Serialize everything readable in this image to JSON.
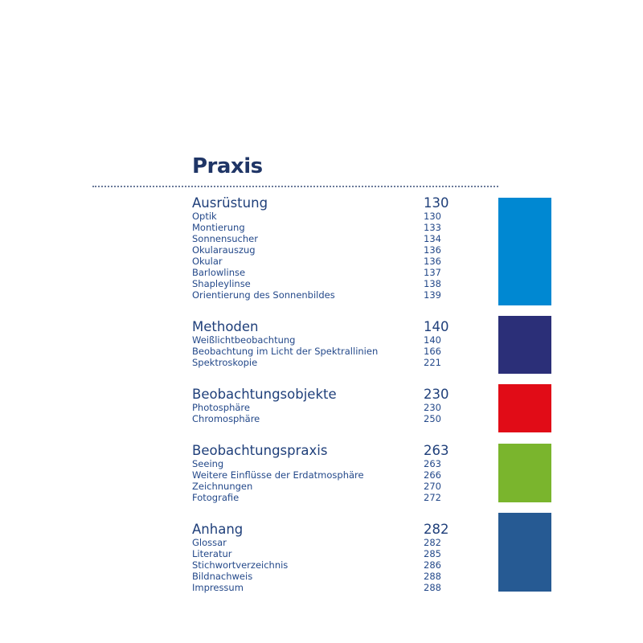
{
  "title": "Praxis",
  "sections": [
    {
      "label": "Ausrüstung",
      "page": "130",
      "color": "#0088d2",
      "items": [
        {
          "label": "Optik",
          "page": "130"
        },
        {
          "label": "Montierung",
          "page": "133"
        },
        {
          "label": "Sonnensucher",
          "page": "134"
        },
        {
          "label": "Okularauszug",
          "page": "136"
        },
        {
          "label": "Okular",
          "page": "136"
        },
        {
          "label": "Barlowlinse",
          "page": "137"
        },
        {
          "label": "Shapleylinse",
          "page": "138"
        },
        {
          "label": "Orientierung des Sonnenbildes",
          "page": "139"
        }
      ]
    },
    {
      "label": "Methoden",
      "page": "140",
      "color": "#2b2f78",
      "items": [
        {
          "label": "Weißlichtbeobachtung",
          "page": "140"
        },
        {
          "label": "Beobachtung im Licht der Spektrallinien",
          "page": "166"
        },
        {
          "label": "Spektroskopie",
          "page": "221"
        }
      ]
    },
    {
      "label": "Beobachtungsobjekte",
      "page": "230",
      "color": "#e10c17",
      "items": [
        {
          "label": "Photosphäre",
          "page": "230"
        },
        {
          "label": "Chromosphäre",
          "page": "250"
        }
      ]
    },
    {
      "label": "Beobachtungspraxis",
      "page": "263",
      "color": "#7ab52d",
      "items": [
        {
          "label": "Seeing",
          "page": "263"
        },
        {
          "label": "Weitere Einflüsse der Erdatmosphäre",
          "page": "266"
        },
        {
          "label": "Zeichnungen",
          "page": "270"
        },
        {
          "label": "Fotografie",
          "page": "272"
        }
      ]
    },
    {
      "label": "Anhang",
      "page": "282",
      "color": "#265a93",
      "items": [
        {
          "label": "Glossar",
          "page": "282"
        },
        {
          "label": "Literatur",
          "page": "285"
        },
        {
          "label": "Stichwortverzeichnis",
          "page": "286"
        },
        {
          "label": "Bildnachweis",
          "page": "288"
        },
        {
          "label": "Impressum",
          "page": "288"
        }
      ]
    }
  ]
}
